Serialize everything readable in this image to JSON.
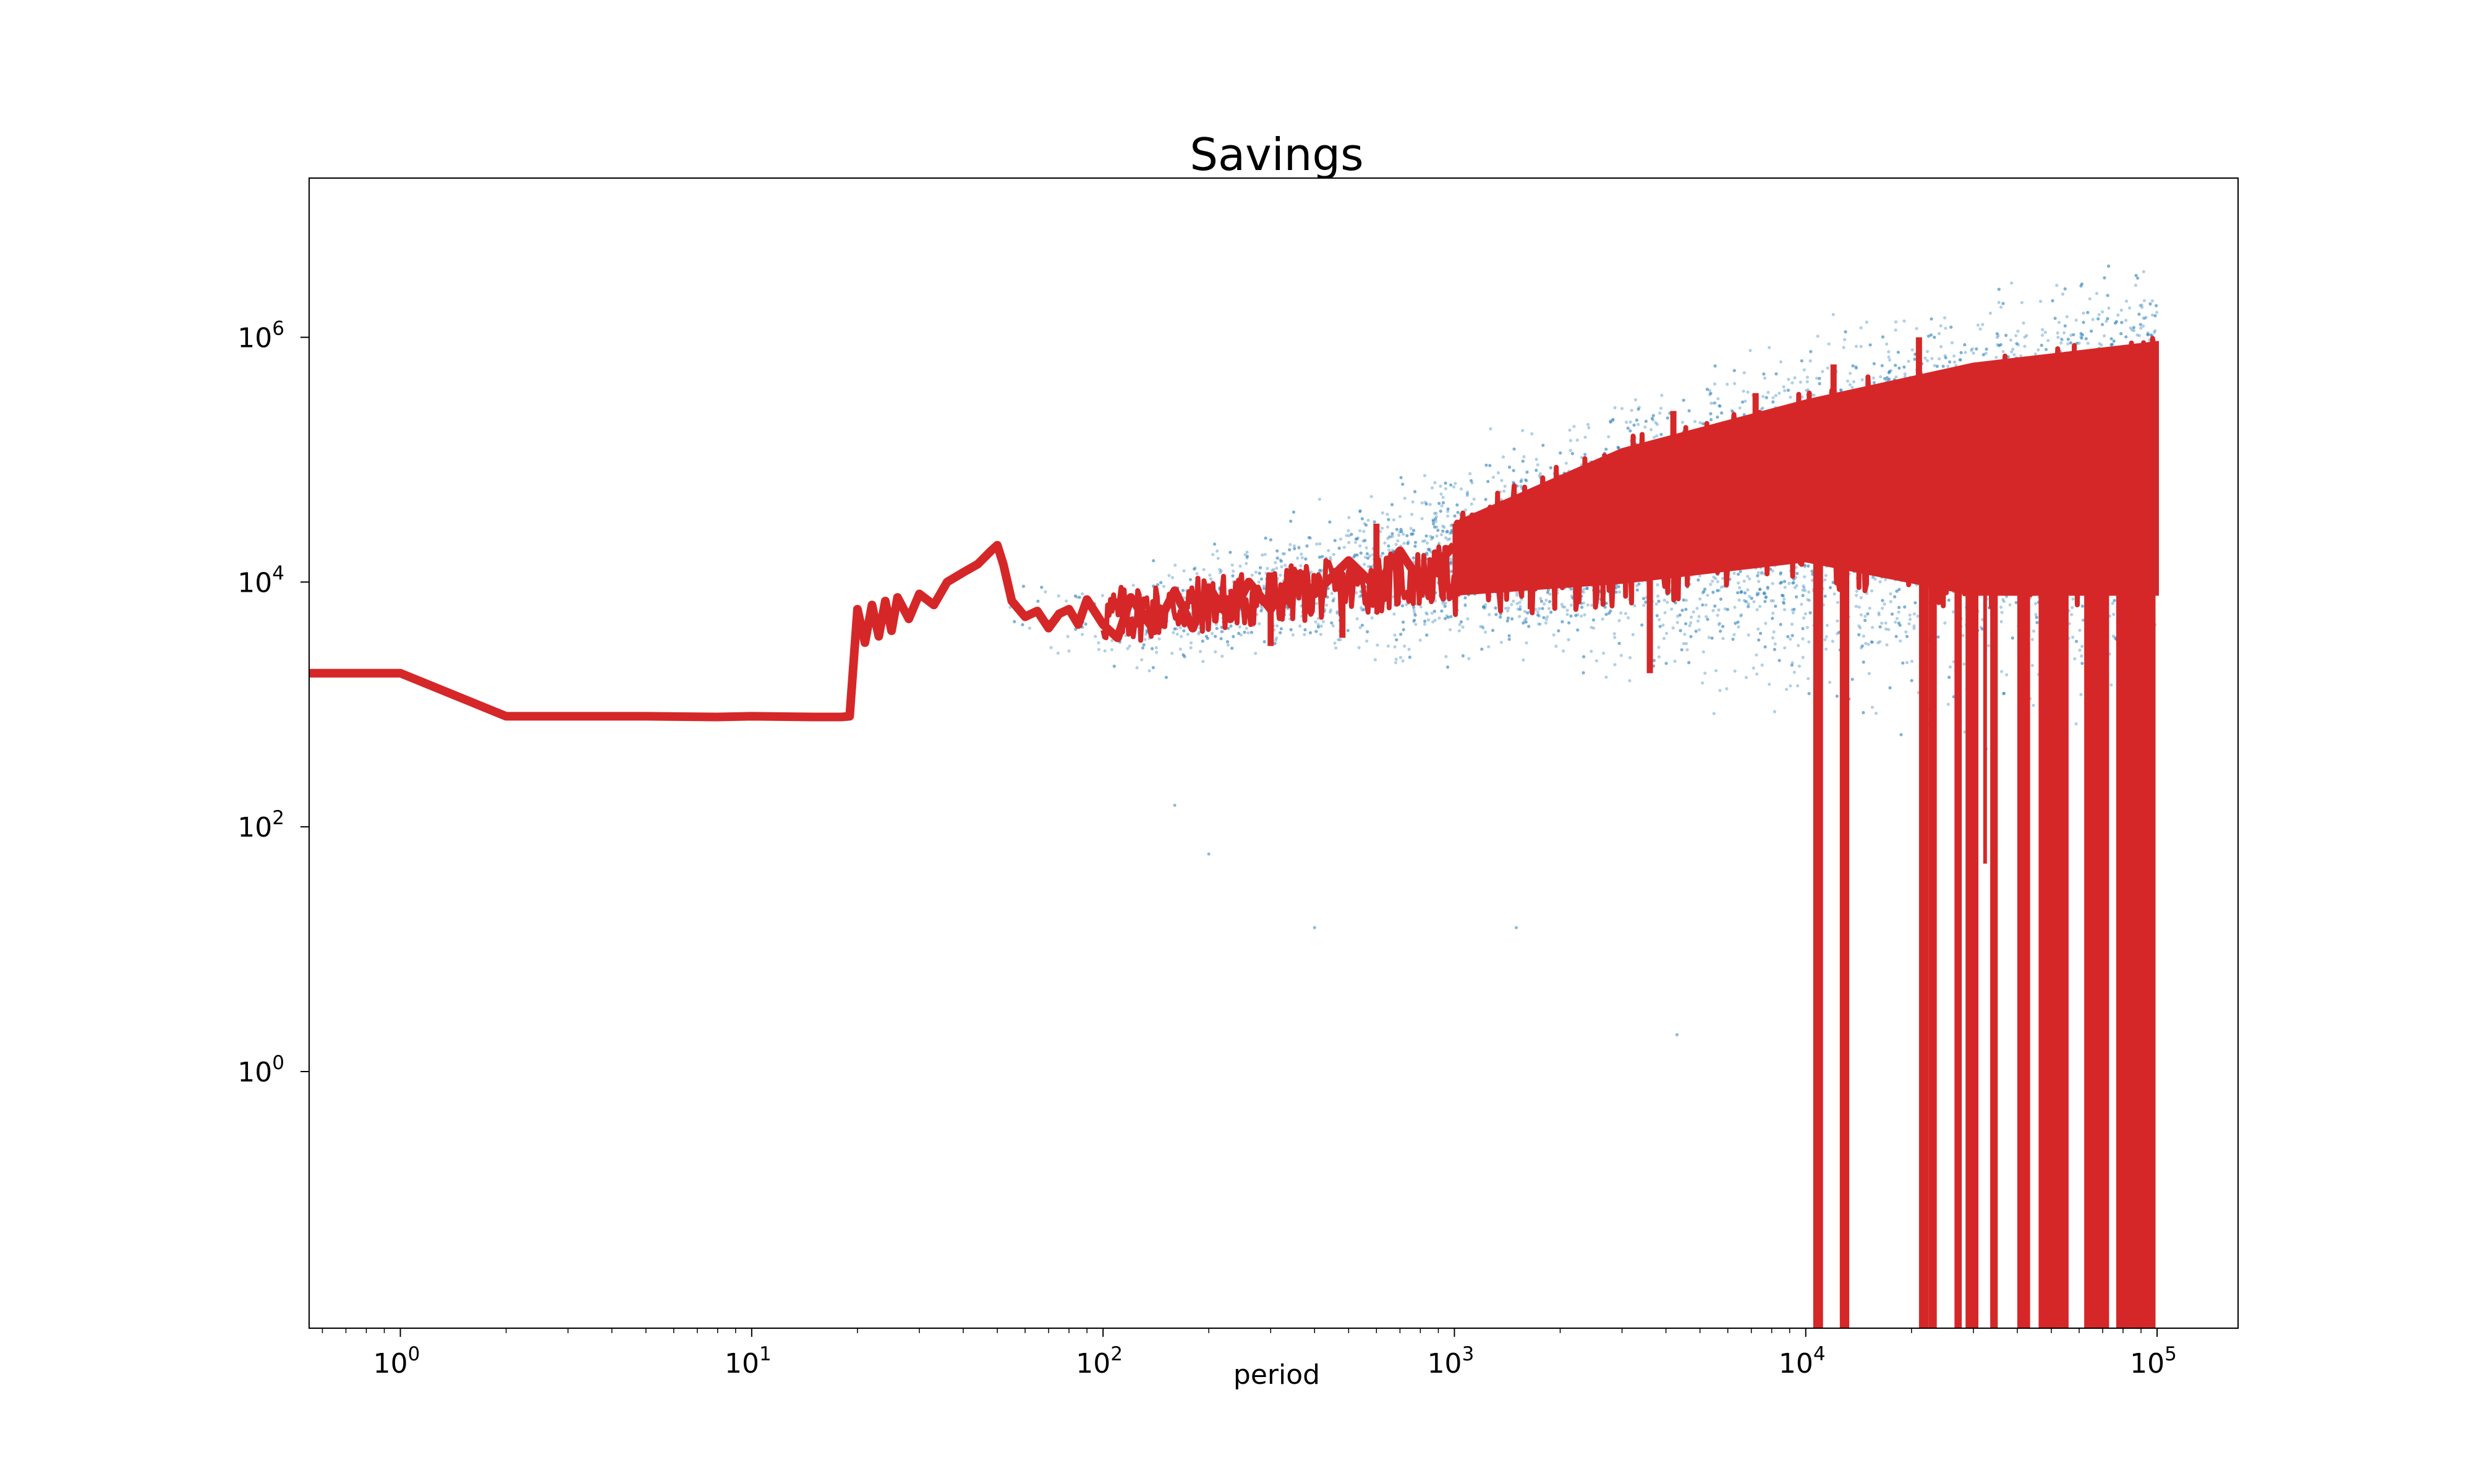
{
  "chart_data": {
    "type": "scatter",
    "title": "Savings",
    "xlabel": "period",
    "ylabel": "",
    "xscale": "log",
    "yscale": "log",
    "xlim": [
      0.55,
      170000
    ],
    "ylim": [
      0.008,
      20000000
    ],
    "grid": false,
    "legend": "none",
    "xticks": [
      {
        "value": 1,
        "base": "10",
        "exp": "0"
      },
      {
        "value": 10,
        "base": "10",
        "exp": "1"
      },
      {
        "value": 100,
        "base": "10",
        "exp": "2"
      },
      {
        "value": 1000,
        "base": "10",
        "exp": "3"
      },
      {
        "value": 10000,
        "base": "10",
        "exp": "4"
      },
      {
        "value": 100000,
        "base": "10",
        "exp": "5"
      }
    ],
    "yticks": [
      {
        "value": 1,
        "base": "10",
        "exp": "0"
      },
      {
        "value": 100,
        "base": "10",
        "exp": "2"
      },
      {
        "value": 10000,
        "base": "10",
        "exp": "4"
      },
      {
        "value": 1000000,
        "base": "10",
        "exp": "6"
      }
    ],
    "series": [
      {
        "style": "scatter",
        "color": "#1f77b4",
        "description_points": "individual savings, widening cloud",
        "envelope": [
          {
            "x": 50,
            "low": 3500,
            "median": 5500,
            "high": 20000
          },
          {
            "x": 100,
            "low": 1200,
            "median": 5000,
            "high": 12000
          },
          {
            "x": 300,
            "low": 1500,
            "median": 8000,
            "high": 40000
          },
          {
            "x": 1000,
            "low": 1200,
            "median": 15000,
            "high": 150000
          },
          {
            "x": 3000,
            "low": 800,
            "median": 30000,
            "high": 500000
          },
          {
            "x": 10000,
            "low": 500,
            "median": 60000,
            "high": 1500000
          },
          {
            "x": 30000,
            "low": 300,
            "median": 120000,
            "high": 3500000
          },
          {
            "x": 100000,
            "low": 300,
            "median": 200000,
            "high": 7000000
          }
        ]
      },
      {
        "style": "line",
        "color": "#d62728",
        "x": [
          0.55,
          1,
          2,
          3,
          5,
          8,
          10,
          15,
          18,
          19,
          20,
          21,
          22,
          23,
          24,
          25,
          26,
          28,
          30,
          33,
          36,
          40,
          44,
          48,
          50,
          52,
          55,
          60,
          65,
          70,
          75,
          80,
          85,
          90,
          100,
          110,
          120,
          140,
          160,
          180,
          200,
          230,
          260,
          300,
          350,
          400,
          500,
          600,
          700,
          800,
          1000
        ],
        "y": [
          1800,
          1800,
          800,
          800,
          800,
          790,
          800,
          790,
          790,
          800,
          6000,
          3200,
          6500,
          3600,
          7000,
          4000,
          7500,
          5000,
          8000,
          6500,
          10000,
          12000,
          14000,
          18000,
          20000,
          14000,
          7000,
          5200,
          5800,
          4200,
          5500,
          6000,
          4500,
          7200,
          4500,
          3500,
          7500,
          4000,
          8500,
          4200,
          9000,
          5000,
          10000,
          6000,
          12000,
          8000,
          15000,
          9000,
          18000,
          10000,
          20000
        ],
        "band": [
          {
            "x": 1000,
            "low": 8000,
            "high": 30000
          },
          {
            "x": 3000,
            "low": 10000,
            "high": 120000
          },
          {
            "x": 10000,
            "low": 15000,
            "high": 300000
          },
          {
            "x": 30000,
            "low": 8000,
            "high": 600000
          },
          {
            "x": 100000,
            "low": 8000,
            "high": 900000
          }
        ],
        "spikes": [
          {
            "x": 300,
            "y": 3000
          },
          {
            "x": 480,
            "y": 3500
          },
          {
            "x": 1650,
            "y": 6000
          },
          {
            "x": 3600,
            "y": 1800
          },
          {
            "x": 600,
            "y": 30000
          },
          {
            "x": 1300,
            "y": 40000
          },
          {
            "x": 4200,
            "y": 250000
          },
          {
            "x": 7200,
            "y": 350000
          },
          {
            "x": 12000,
            "y": 600000
          },
          {
            "x": 21000,
            "y": 1000000
          }
        ],
        "drops": [
          {
            "x0": 10500,
            "x1": 11200,
            "bottom": 0.008
          },
          {
            "x0": 12500,
            "x1": 13300,
            "bottom": 0.008
          },
          {
            "x0": 21000,
            "x1": 22400,
            "bottom": 0.008
          },
          {
            "x0": 22400,
            "x1": 23600,
            "bottom": 0.008
          },
          {
            "x0": 26500,
            "x1": 27800,
            "bottom": 0.008
          },
          {
            "x0": 28500,
            "x1": 31000,
            "bottom": 0.008
          },
          {
            "x0": 33500,
            "x1": 35200,
            "bottom": 0.008
          },
          {
            "x0": 40000,
            "x1": 43500,
            "bottom": 0.008
          },
          {
            "x0": 46000,
            "x1": 56000,
            "bottom": 0.008
          },
          {
            "x0": 62000,
            "x1": 73000,
            "bottom": 0.008
          },
          {
            "x0": 76500,
            "x1": 99000,
            "bottom": 0.008
          },
          {
            "x0": 32000,
            "x1": 32600,
            "bottom": 50
          }
        ]
      }
    ]
  }
}
